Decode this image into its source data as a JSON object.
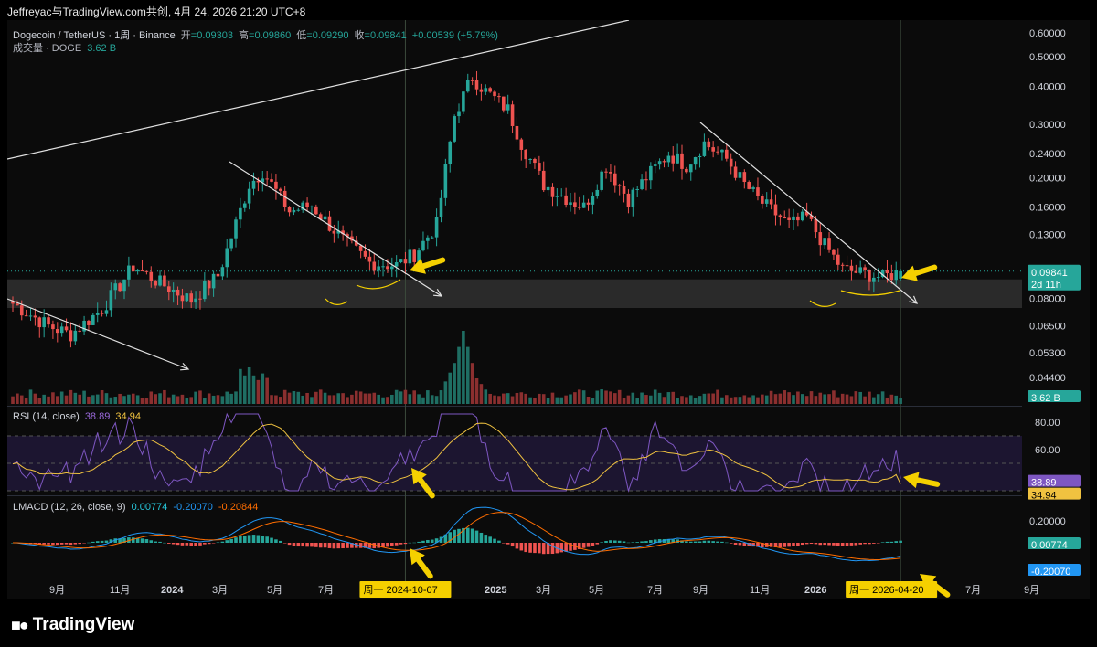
{
  "caption": "Jeffreyac与TradingView.com共创, 4月 24, 2026 21:20 UTC+8",
  "legend": {
    "symbol": "Dogecoin / TetherUS · 1周 · Binance",
    "open_label": "开",
    "open": "=0.09303",
    "high_label": "高",
    "high": "=0.09860",
    "low_label": "低",
    "low": "=0.09290",
    "close_label": "收",
    "close": "=0.09841",
    "change": "+0.00539 (+5.79%)",
    "volume_label": "成交量 · DOGE",
    "volume_value": "3.62 B"
  },
  "rsi_legend": {
    "label": "RSI (14, close)",
    "rsi": "38.89",
    "ma": "34.94"
  },
  "macd_legend": {
    "label": "LMACD (12, 26, close, 9)",
    "hist": "0.00774",
    "macd": "-0.20070",
    "signal": "-0.20844"
  },
  "logo": {
    "text": "TradingView"
  },
  "colors": {
    "up": "#26a69a",
    "down": "#ef5350",
    "rsi": "#7e57c2",
    "rsi_ma": "#f0c240",
    "macd": "#2196f3",
    "signal": "#ff6d00",
    "arrow": "#f5d000"
  },
  "chart_data": [
    {
      "type": "candlestick",
      "title": "Dogecoin / TetherUS · 1周 · Binance",
      "y_scale": "log",
      "ylim": [
        0.036,
        0.66
      ],
      "y_ticks": [
        "0.60000",
        "0.50000",
        "0.40000",
        "0.30000",
        "0.24000",
        "0.20000",
        "0.16000",
        "0.13000",
        "0.08000",
        "0.06500",
        "0.05300",
        "0.04400"
      ],
      "x_ticks": [
        "9月",
        "11月",
        "2024",
        "3月",
        "5月",
        "7月",
        "2025",
        "3月",
        "5月",
        "7月",
        "9月",
        "11月",
        "2026",
        "7月",
        "9月"
      ],
      "last_price_label": "0.09841",
      "countdown_label": "2d 11h",
      "volume_label": "3.62 B",
      "date_labels": [
        "周一 2024-10-07",
        "周一 2026-04-20"
      ],
      "anchors": [
        {
          "t": 0,
          "p": 0.077
        },
        {
          "t": 8,
          "p": 0.065
        },
        {
          "t": 13,
          "p": 0.061
        },
        {
          "t": 20,
          "p": 0.074
        },
        {
          "t": 27,
          "p": 0.102
        },
        {
          "t": 33,
          "p": 0.09
        },
        {
          "t": 40,
          "p": 0.079
        },
        {
          "t": 46,
          "p": 0.095
        },
        {
          "t": 53,
          "p": 0.19
        },
        {
          "t": 56,
          "p": 0.21
        },
        {
          "t": 62,
          "p": 0.155
        },
        {
          "t": 67,
          "p": 0.162
        },
        {
          "t": 74,
          "p": 0.125
        },
        {
          "t": 80,
          "p": 0.105
        },
        {
          "t": 86,
          "p": 0.103
        },
        {
          "t": 90,
          "p": 0.112
        },
        {
          "t": 95,
          "p": 0.14
        },
        {
          "t": 99,
          "p": 0.32
        },
        {
          "t": 103,
          "p": 0.43
        },
        {
          "t": 106,
          "p": 0.385
        },
        {
          "t": 111,
          "p": 0.335
        },
        {
          "t": 114,
          "p": 0.26
        },
        {
          "t": 119,
          "p": 0.19
        },
        {
          "t": 123,
          "p": 0.175
        },
        {
          "t": 128,
          "p": 0.16
        },
        {
          "t": 133,
          "p": 0.22
        },
        {
          "t": 138,
          "p": 0.17
        },
        {
          "t": 142,
          "p": 0.2
        },
        {
          "t": 147,
          "p": 0.24
        },
        {
          "t": 151,
          "p": 0.22
        },
        {
          "t": 155,
          "p": 0.26
        },
        {
          "t": 160,
          "p": 0.23
        },
        {
          "t": 164,
          "p": 0.19
        },
        {
          "t": 168,
          "p": 0.165
        },
        {
          "t": 174,
          "p": 0.14
        },
        {
          "t": 178,
          "p": 0.148
        },
        {
          "t": 182,
          "p": 0.12
        },
        {
          "t": 186,
          "p": 0.1
        },
        {
          "t": 190,
          "p": 0.097
        },
        {
          "t": 195,
          "p": 0.094
        },
        {
          "t": 199,
          "p": 0.0984
        }
      ],
      "volume_peaks": [
        {
          "t": 101,
          "v": 1.0
        },
        {
          "t": 99,
          "v": 0.55
        },
        {
          "t": 53,
          "v": 0.5
        },
        {
          "t": 104,
          "v": 0.35
        }
      ]
    },
    {
      "type": "line",
      "title": "RSI (14, close)",
      "ylim": [
        28,
        92
      ],
      "y_ticks": [
        "80.00",
        "60.00"
      ],
      "current": [
        38.89,
        34.94
      ]
    },
    {
      "type": "line",
      "title": "LMACD (12, 26, close, 9)",
      "y_ticks": [
        "0.20000"
      ],
      "current": [
        0.00774,
        -0.2007,
        -0.20844
      ]
    }
  ]
}
